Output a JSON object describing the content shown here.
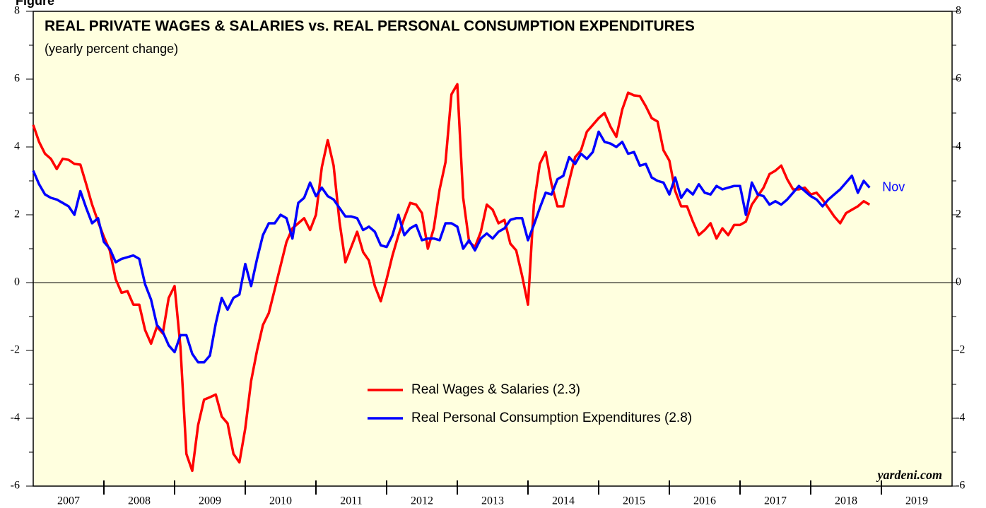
{
  "chart_data": {
    "type": "line",
    "figure_label": "Figure",
    "title": "REAL PRIVATE WAGES & SALARIES vs. REAL PERSONAL CONSUMPTION EXPENDITURES",
    "subtitle": "(yearly percent change)",
    "annotations": [
      "Nov",
      "yardeni.com"
    ],
    "x": [
      2007.0,
      2007.083,
      2007.167,
      2007.25,
      2007.333,
      2007.417,
      2007.5,
      2007.583,
      2007.667,
      2007.75,
      2007.833,
      2007.917,
      2008.0,
      2008.083,
      2008.167,
      2008.25,
      2008.333,
      2008.417,
      2008.5,
      2008.583,
      2008.667,
      2008.75,
      2008.833,
      2008.917,
      2009.0,
      2009.083,
      2009.167,
      2009.25,
      2009.333,
      2009.417,
      2009.5,
      2009.583,
      2009.667,
      2009.75,
      2009.833,
      2009.917,
      2010.0,
      2010.083,
      2010.167,
      2010.25,
      2010.333,
      2010.417,
      2010.5,
      2010.583,
      2010.667,
      2010.75,
      2010.833,
      2010.917,
      2011.0,
      2011.083,
      2011.167,
      2011.25,
      2011.333,
      2011.417,
      2011.5,
      2011.583,
      2011.667,
      2011.75,
      2011.833,
      2011.917,
      2012.0,
      2012.083,
      2012.167,
      2012.25,
      2012.333,
      2012.417,
      2012.5,
      2012.583,
      2012.667,
      2012.75,
      2012.833,
      2012.917,
      2013.0,
      2013.083,
      2013.167,
      2013.25,
      2013.333,
      2013.417,
      2013.5,
      2013.583,
      2013.667,
      2013.75,
      2013.833,
      2013.917,
      2014.0,
      2014.083,
      2014.167,
      2014.25,
      2014.333,
      2014.417,
      2014.5,
      2014.583,
      2014.667,
      2014.75,
      2014.833,
      2014.917,
      2015.0,
      2015.083,
      2015.167,
      2015.25,
      2015.333,
      2015.417,
      2015.5,
      2015.583,
      2015.667,
      2015.75,
      2015.833,
      2015.917,
      2016.0,
      2016.083,
      2016.167,
      2016.25,
      2016.333,
      2016.417,
      2016.5,
      2016.583,
      2016.667,
      2016.75,
      2016.833,
      2016.917,
      2017.0,
      2017.083,
      2017.167,
      2017.25,
      2017.333,
      2017.417,
      2017.5,
      2017.583,
      2017.667,
      2017.75,
      2017.833,
      2017.917,
      2018.0,
      2018.083,
      2018.167,
      2018.25,
      2018.333,
      2018.417,
      2018.5,
      2018.583,
      2018.667,
      2018.75,
      2018.833
    ],
    "series": [
      {
        "name": "Real Wages & Salaries (2.3)",
        "color": "#ff0000",
        "values": [
          4.65,
          4.15,
          3.8,
          3.65,
          3.35,
          3.65,
          3.62,
          3.5,
          3.48,
          2.9,
          2.3,
          1.8,
          1.35,
          0.95,
          0.1,
          -0.3,
          -0.25,
          -0.65,
          -0.65,
          -1.4,
          -1.8,
          -1.3,
          -1.5,
          -0.45,
          -0.1,
          -1.9,
          -5.05,
          -5.55,
          -4.2,
          -3.45,
          -3.38,
          -3.3,
          -3.95,
          -4.15,
          -5.05,
          -5.3,
          -4.3,
          -2.9,
          -2.0,
          -1.25,
          -0.9,
          -0.2,
          0.5,
          1.2,
          1.6,
          1.75,
          1.9,
          1.55,
          2.0,
          3.4,
          4.2,
          3.45,
          1.8,
          0.6,
          1.05,
          1.5,
          0.9,
          0.65,
          -0.1,
          -0.55,
          0.1,
          0.8,
          1.4,
          1.9,
          2.35,
          2.3,
          2.05,
          1.0,
          1.6,
          2.75,
          3.55,
          5.55,
          5.85,
          2.5,
          1.2,
          1.05,
          1.5,
          2.3,
          2.15,
          1.75,
          1.85,
          1.15,
          0.95,
          0.2,
          -0.65,
          2.3,
          3.5,
          3.85,
          2.9,
          2.25,
          2.25,
          3.0,
          3.7,
          3.9,
          4.45,
          4.65,
          4.85,
          5.0,
          4.6,
          4.3,
          5.1,
          5.6,
          5.52,
          5.5,
          5.2,
          4.85,
          4.75,
          3.9,
          3.6,
          2.7,
          2.25,
          2.25,
          1.8,
          1.4,
          1.55,
          1.75,
          1.3,
          1.6,
          1.4,
          1.7,
          1.7,
          1.8,
          2.3,
          2.55,
          2.8,
          3.2,
          3.3,
          3.45,
          3.05,
          2.75,
          2.75,
          2.8,
          2.6,
          2.65,
          2.45,
          2.2,
          1.95,
          1.75,
          2.05,
          2.15,
          2.25,
          2.4,
          2.3
        ]
      },
      {
        "name": "Real Personal Consumption Expenditures (2.8)",
        "color": "#0000ff",
        "values": [
          3.3,
          2.9,
          2.6,
          2.5,
          2.45,
          2.35,
          2.25,
          2.0,
          2.7,
          2.2,
          1.75,
          1.9,
          1.2,
          1.0,
          0.6,
          0.7,
          0.75,
          0.8,
          0.7,
          -0.05,
          -0.5,
          -1.25,
          -1.45,
          -1.85,
          -2.05,
          -1.55,
          -1.55,
          -2.1,
          -2.35,
          -2.35,
          -2.15,
          -1.2,
          -0.45,
          -0.8,
          -0.45,
          -0.35,
          0.55,
          -0.1,
          0.7,
          1.4,
          1.75,
          1.75,
          2.0,
          1.9,
          1.3,
          2.35,
          2.5,
          2.95,
          2.55,
          2.8,
          2.55,
          2.45,
          2.2,
          1.95,
          1.95,
          1.9,
          1.55,
          1.65,
          1.5,
          1.1,
          1.05,
          1.4,
          2.0,
          1.4,
          1.6,
          1.7,
          1.25,
          1.3,
          1.3,
          1.25,
          1.75,
          1.75,
          1.65,
          1.0,
          1.25,
          0.95,
          1.3,
          1.45,
          1.3,
          1.5,
          1.6,
          1.85,
          1.9,
          1.9,
          1.25,
          1.7,
          2.2,
          2.65,
          2.6,
          3.05,
          3.15,
          3.7,
          3.5,
          3.8,
          3.65,
          3.85,
          4.45,
          4.15,
          4.1,
          4.0,
          4.15,
          3.8,
          3.85,
          3.45,
          3.5,
          3.1,
          3.0,
          2.95,
          2.6,
          3.1,
          2.5,
          2.75,
          2.6,
          2.9,
          2.65,
          2.6,
          2.85,
          2.75,
          2.8,
          2.85,
          2.85,
          2.0,
          2.95,
          2.6,
          2.55,
          2.3,
          2.4,
          2.3,
          2.45,
          2.65,
          2.85,
          2.7,
          2.55,
          2.45,
          2.25,
          2.45,
          2.6,
          2.75,
          2.95,
          3.15,
          2.65,
          3.0,
          2.8
        ]
      }
    ],
    "xlim": [
      2007,
      2020
    ],
    "xticks": [
      {
        "value": 2007.5,
        "label": "2007"
      },
      {
        "value": 2008.5,
        "label": "2008"
      },
      {
        "value": 2009.5,
        "label": "2009"
      },
      {
        "value": 2010.5,
        "label": "2010"
      },
      {
        "value": 2011.5,
        "label": "2011"
      },
      {
        "value": 2012.5,
        "label": "2012"
      },
      {
        "value": 2013.5,
        "label": "2013"
      },
      {
        "value": 2014.5,
        "label": "2014"
      },
      {
        "value": 2015.5,
        "label": "2015"
      },
      {
        "value": 2016.5,
        "label": "2016"
      },
      {
        "value": 2017.5,
        "label": "2017"
      },
      {
        "value": 2018.5,
        "label": "2018"
      },
      {
        "value": 2019.5,
        "label": "2019"
      }
    ],
    "ylim": [
      -6,
      8
    ],
    "yticks": [
      -6,
      -4,
      -2,
      0,
      2,
      4,
      6,
      8
    ],
    "y2lim": [
      -6,
      8
    ],
    "y2ticks": [
      -6,
      -4,
      -2,
      0,
      2,
      4,
      6,
      8
    ],
    "zero_line": true,
    "legend": "lower-center"
  }
}
